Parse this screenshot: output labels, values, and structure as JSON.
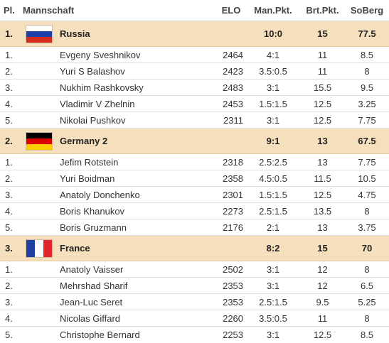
{
  "header": {
    "pl": "Pl.",
    "team": "Mannschaft",
    "elo": "ELO",
    "man_pkt": "Man.Pkt.",
    "brt_pkt": "Brt.Pkt.",
    "soberg": "SoBerg"
  },
  "teams": [
    {
      "rank": "1.",
      "flag": "russia-flag-icon",
      "name": "Russia",
      "man_pkt": "10:0",
      "brt_pkt": "15",
      "soberg": "77.5",
      "players": [
        {
          "board": "1.",
          "name": "Evgeny Sveshnikov",
          "elo": "2464",
          "result": "4:1",
          "brt": "11",
          "soberg": "8.5"
        },
        {
          "board": "2.",
          "name": "Yuri S Balashov",
          "elo": "2423",
          "result": "3.5:0.5",
          "brt": "11",
          "soberg": "8"
        },
        {
          "board": "3.",
          "name": "Nukhim Rashkovsky",
          "elo": "2483",
          "result": "3:1",
          "brt": "15.5",
          "soberg": "9.5"
        },
        {
          "board": "4.",
          "name": "Vladimir V Zhelnin",
          "elo": "2453",
          "result": "1.5:1.5",
          "brt": "12.5",
          "soberg": "3.25"
        },
        {
          "board": "5.",
          "name": "Nikolai Pushkov",
          "elo": "2311",
          "result": "3:1",
          "brt": "12.5",
          "soberg": "7.75"
        }
      ]
    },
    {
      "rank": "2.",
      "flag": "germany-flag-icon",
      "name": "Germany 2",
      "man_pkt": "9:1",
      "brt_pkt": "13",
      "soberg": "67.5",
      "players": [
        {
          "board": "1.",
          "name": "Jefim Rotstein",
          "elo": "2318",
          "result": "2.5:2.5",
          "brt": "13",
          "soberg": "7.75"
        },
        {
          "board": "2.",
          "name": "Yuri Boidman",
          "elo": "2358",
          "result": "4.5:0.5",
          "brt": "11.5",
          "soberg": "10.5"
        },
        {
          "board": "3.",
          "name": "Anatoly Donchenko",
          "elo": "2301",
          "result": "1.5:1.5",
          "brt": "12.5",
          "soberg": "4.75"
        },
        {
          "board": "4.",
          "name": "Boris Khanukov",
          "elo": "2273",
          "result": "2.5:1.5",
          "brt": "13.5",
          "soberg": "8"
        },
        {
          "board": "5.",
          "name": "Boris Gruzmann",
          "elo": "2176",
          "result": "2:1",
          "brt": "13",
          "soberg": "3.75"
        }
      ]
    },
    {
      "rank": "3.",
      "flag": "france-flag-icon",
      "name": "France",
      "man_pkt": "8:2",
      "brt_pkt": "15",
      "soberg": "70",
      "players": [
        {
          "board": "1.",
          "name": "Anatoly Vaisser",
          "elo": "2502",
          "result": "3:1",
          "brt": "12",
          "soberg": "8"
        },
        {
          "board": "2.",
          "name": "Mehrshad Sharif",
          "elo": "2353",
          "result": "3:1",
          "brt": "12",
          "soberg": "6.5"
        },
        {
          "board": "3.",
          "name": "Jean-Luc Seret",
          "elo": "2353",
          "result": "2.5:1.5",
          "brt": "9.5",
          "soberg": "5.25"
        },
        {
          "board": "4.",
          "name": "Nicolas Giffard",
          "elo": "2260",
          "result": "3.5:0.5",
          "brt": "11",
          "soberg": "8"
        },
        {
          "board": "5.",
          "name": "Christophe Bernard",
          "elo": "2253",
          "result": "3:1",
          "brt": "12.5",
          "soberg": "8.5"
        }
      ]
    }
  ]
}
